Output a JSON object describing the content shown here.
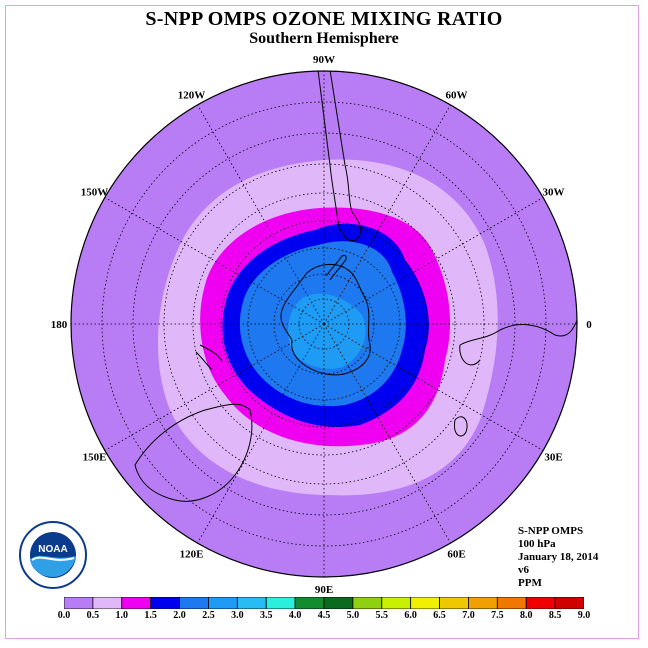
{
  "title": "S-NPP OMPS OZONE MIXING RATIO",
  "subtitle": "Southern Hemisphere",
  "info": {
    "instrument": "S-NPP OMPS",
    "level": "100 hPa",
    "date": "January 18, 2014",
    "version": "v6",
    "units": "PPM"
  },
  "logo": {
    "text": "NOAA",
    "ring_text": "NATIONAL OCEANIC AND ATMOSPHERIC ADMINISTRATION · U.S. DEPARTMENT OF COMMERCE"
  },
  "longitude_labels": [
    {
      "text": "90W",
      "angle": -90
    },
    {
      "text": "60W",
      "angle": -60
    },
    {
      "text": "30W",
      "angle": -30
    },
    {
      "text": "0",
      "angle": 0
    },
    {
      "text": "30E",
      "angle": 30
    },
    {
      "text": "60E",
      "angle": 60
    },
    {
      "text": "90E",
      "angle": 90
    },
    {
      "text": "120E",
      "angle": 120
    },
    {
      "text": "150E",
      "angle": 150
    },
    {
      "text": "180",
      "angle": 180
    },
    {
      "text": "150W",
      "angle": -150
    },
    {
      "text": "120W",
      "angle": -120
    }
  ],
  "colorbar": {
    "ticks": [
      "0.0",
      "0.5",
      "1.0",
      "1.5",
      "2.0",
      "2.5",
      "3.0",
      "3.5",
      "4.0",
      "4.5",
      "5.0",
      "5.5",
      "6.0",
      "6.5",
      "7.0",
      "7.5",
      "8.0",
      "8.5",
      "9.0"
    ],
    "colors": [
      "#b87cf5",
      "#e0b8fa",
      "#f000f0",
      "#0000f0",
      "#1e78f0",
      "#1e9cf5",
      "#28bcf5",
      "#28f0dc",
      "#128c2e",
      "#0b6a1e",
      "#90d010",
      "#c8f000",
      "#f0f000",
      "#f0c800",
      "#f0a000",
      "#f07800",
      "#f00000",
      "#d00000",
      "#8b5a3c"
    ]
  },
  "map_data": {
    "projection": "south polar stereographic",
    "contour_levels_ppm": [
      0.5,
      1.0,
      1.5,
      2.0,
      2.5
    ],
    "level_colors": [
      "#b87cf5",
      "#e0b8fa",
      "#f000f0",
      "#0000f0",
      "#1e78f0",
      "#1e9cf5"
    ]
  }
}
